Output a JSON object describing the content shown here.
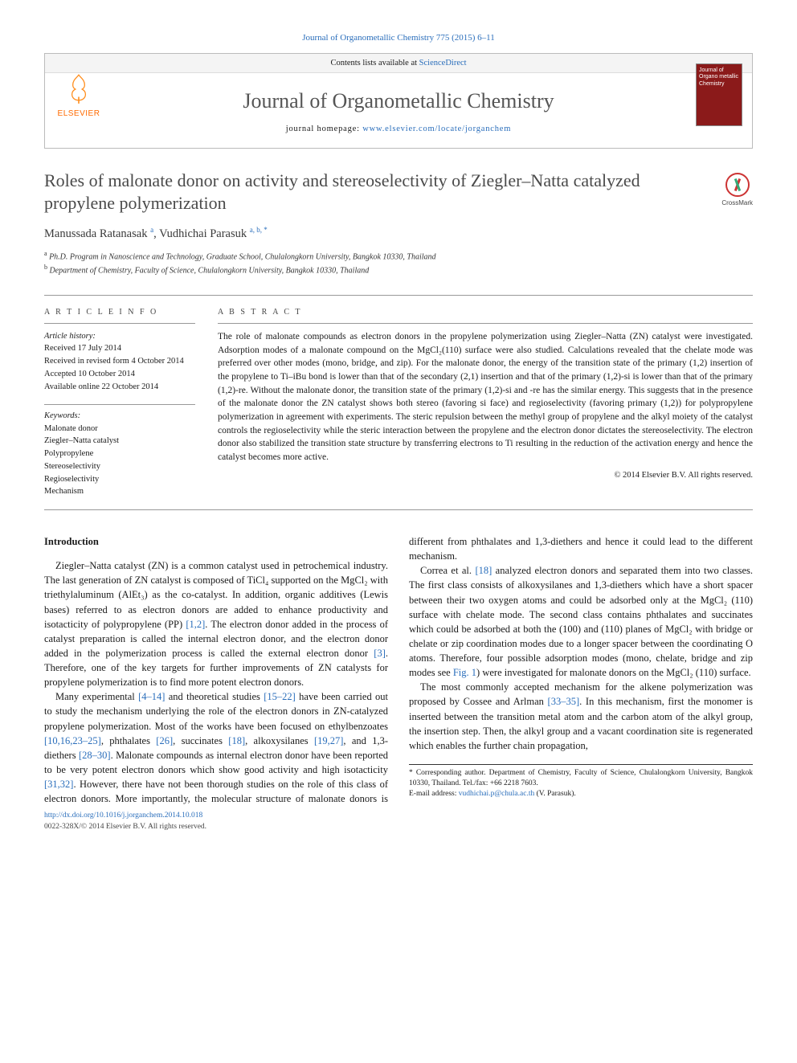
{
  "citation": "Journal of Organometallic Chemistry 775 (2015) 6–11",
  "header": {
    "contents_label": "Contents lists available at",
    "contents_link": "ScienceDirect",
    "journal_title": "Journal of Organometallic Chemistry",
    "homepage_label": "journal homepage:",
    "homepage_url": "www.elsevier.com/locate/jorganchem",
    "publisher_name": "ELSEVIER",
    "publisher_color": "#ff6a00",
    "cover_text": "Journal of Organo metallic Chemistry",
    "cover_bg": "#8b1a1a"
  },
  "article": {
    "title": "Roles of malonate donor on activity and stereoselectivity of Ziegler–Natta catalyzed propylene polymerization",
    "crossmark_label": "CrossMark",
    "authors_html": "Manussada Ratanasak <sup>a</sup>, Vudhichai Parasuk <sup>a, b, *</sup>",
    "affiliations": {
      "a": "Ph.D. Program in Nanoscience and Technology, Graduate School, Chulalongkorn University, Bangkok 10330, Thailand",
      "b": "Department of Chemistry, Faculty of Science, Chulalongkorn University, Bangkok 10330, Thailand"
    }
  },
  "meta": {
    "info_heading": "A R T I C L E   I N F O",
    "abstract_heading": "A B S T R A C T",
    "history_label": "Article history:",
    "history": {
      "received": "Received 17 July 2014",
      "revised": "Received in revised form 4 October 2014",
      "accepted": "Accepted 10 October 2014",
      "online": "Available online 22 October 2014"
    },
    "keywords_label": "Keywords:",
    "keywords": [
      "Malonate donor",
      "Ziegler–Natta catalyst",
      "Polypropylene",
      "Stereoselectivity",
      "Regioselectivity",
      "Mechanism"
    ]
  },
  "abstract": "The role of malonate compounds as electron donors in the propylene polymerization using Ziegler–Natta (ZN) catalyst were investigated. Adsorption modes of a malonate compound on the MgCl₂(110) surface were also studied. Calculations revealed that the chelate mode was preferred over other modes (mono, bridge, and zip). For the malonate donor, the energy of the transition state of the primary (1,2) insertion of the propylene to Ti–iBu bond is lower than that of the secondary (2,1) insertion and that of the primary (1,2)-si is lower than that of the primary (1,2)-re. Without the malonate donor, the transition state of the primary (1,2)-si and -re has the similar energy. This suggests that in the presence of the malonate donor the ZN catalyst shows both stereo (favoring si face) and regioselectivity (favoring primary (1,2)) for polypropylene polymerization in agreement with experiments. The steric repulsion between the methyl group of propylene and the alkyl moiety of the catalyst controls the regioselectivity while the steric interaction between the propylene and the electron donor dictates the stereoselectivity. The electron donor also stabilized the transition state structure by transferring electrons to Ti resulting in the reduction of the activation energy and hence the catalyst becomes more active.",
  "copyright": "© 2014 Elsevier B.V. All rights reserved.",
  "intro": {
    "heading": "Introduction",
    "p1a": "Ziegler–Natta catalyst (ZN) is a common catalyst used in petrochemical industry. The last generation of ZN catalyst is composed of TiCl₄ supported on the MgCl₂ with triethylaluminum (AlEt₃) as the co-catalyst. In addition, organic additives (Lewis bases) referred to as electron donors are added to enhance productivity and isotacticity of polypropylene (PP) ",
    "p1_ref1": "[1,2]",
    "p1b": ". The electron donor added in the process of catalyst preparation is called the internal electron donor, and the electron donor added in the polymerization process is called the external electron donor ",
    "p1_ref2": "[3]",
    "p1c": ". Therefore, one of the key targets for further improvements of ZN catalysts for propylene polymerization is to find more potent electron donors.",
    "p2a": "Many experimental ",
    "p2_ref1": "[4–14]",
    "p2b": " and theoretical studies ",
    "p2_ref2": "[15–22]",
    "p2c": " have been carried out to study the mechanism underlying the role of the electron donors in ZN-catalyzed propylene polymerization. Most of the works have been focused on ethylbenzoates ",
    "p2_ref3": "[10,16,23–25]",
    "p2d": ", phthalates ",
    "p2_ref4": "[26]",
    "p2e": ", succinates ",
    "p2_ref5": "[18]",
    "p2f": ", alkoxysilanes ",
    "p2_ref6": "[19,27]",
    "p2g": ", and 1,3-",
    "p3a": "diethers ",
    "p3_ref1": "[28–30]",
    "p3b": ". Malonate compounds as internal electron donor have been reported to be very potent electron donors which show good activity and high isotacticity ",
    "p3_ref2": "[31,32]",
    "p3c": ". However, there have not been thorough studies on the role of this class of electron donors. More importantly, the molecular structure of malonate donors is different from phthalates and 1,3-diethers and hence it could lead to the different mechanism.",
    "p4a": "Correa et al. ",
    "p4_ref1": "[18]",
    "p4b": " analyzed electron donors and separated them into two classes. The first class consists of alkoxysilanes and 1,3-diethers which have a short spacer between their two oxygen atoms and could be adsorbed only at the MgCl₂ (110) surface with chelate mode. The second class contains phthalates and succinates which could be adsorbed at both the (100) and (110) planes of MgCl₂ with bridge or chelate or zip coordination modes due to a longer spacer between the coordinating O atoms. Therefore, four possible adsorption modes (mono, chelate, bridge and zip modes see ",
    "p4_fig": "Fig. 1",
    "p4c": ") were investigated for malonate donors on the MgCl₂ (110) surface.",
    "p5a": "The most commonly accepted mechanism for the alkene polymerization was proposed by Cossee and Arlman ",
    "p5_ref1": "[33–35]",
    "p5b": ". In this mechanism, first the monomer is inserted between the transition metal atom and the carbon atom of the alkyl group, the insertion step. Then, the alkyl group and a vacant coordination site is regenerated which enables the further chain propagation,"
  },
  "footnote": {
    "corresp": "* Corresponding author. Department of Chemistry, Faculty of Science, Chulalongkorn University, Bangkok 10330, Thailand. Tel./fax: +66 2218 7603.",
    "email_label": "E-mail address:",
    "email": "vudhichai.p@chula.ac.th",
    "email_name": "(V. Parasuk)."
  },
  "bottom": {
    "doi": "http://dx.doi.org/10.1016/j.jorganchem.2014.10.018",
    "issn_line": "0022-328X/© 2014 Elsevier B.V. All rights reserved."
  },
  "colors": {
    "link": "#2a6ebb",
    "text": "#1a1a1a"
  }
}
